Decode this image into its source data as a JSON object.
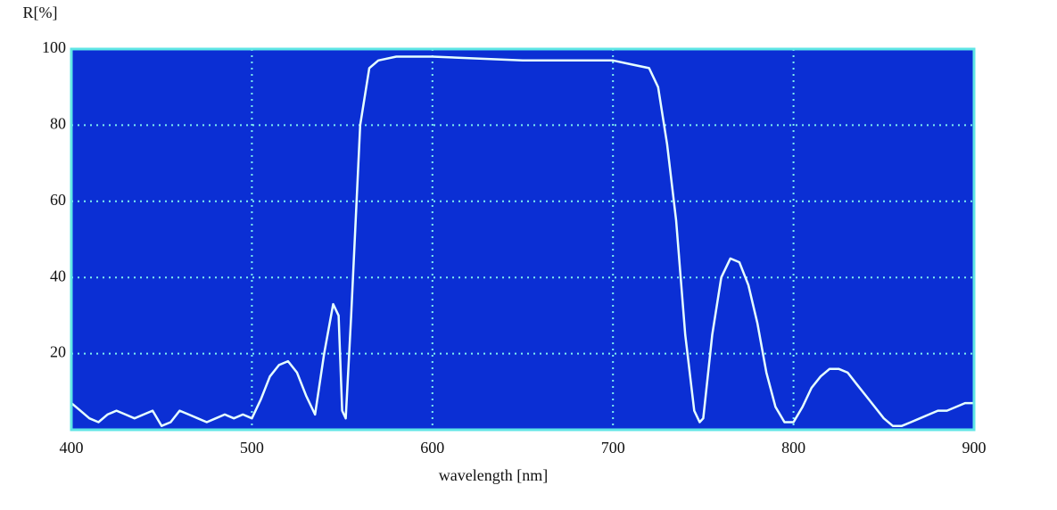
{
  "chart_data": {
    "type": "line",
    "y_label": "R[%]",
    "x_label": "wavelength [nm]",
    "x": [
      400,
      405,
      410,
      415,
      420,
      425,
      430,
      435,
      440,
      445,
      450,
      455,
      460,
      465,
      470,
      475,
      480,
      485,
      490,
      495,
      500,
      505,
      510,
      515,
      520,
      525,
      530,
      535,
      540,
      545,
      548,
      550,
      552,
      555,
      560,
      565,
      570,
      580,
      600,
      650,
      700,
      710,
      720,
      725,
      730,
      735,
      740,
      745,
      748,
      750,
      755,
      760,
      765,
      770,
      775,
      780,
      785,
      790,
      795,
      800,
      805,
      810,
      815,
      820,
      825,
      830,
      835,
      840,
      845,
      850,
      855,
      860,
      865,
      870,
      875,
      880,
      885,
      890,
      895,
      900
    ],
    "series": [
      {
        "name": "R",
        "color": "#e6ffff",
        "values": [
          7,
          5,
          3,
          2,
          4,
          5,
          4,
          3,
          4,
          5,
          1,
          2,
          5,
          4,
          3,
          2,
          3,
          4,
          3,
          4,
          3,
          8,
          14,
          17,
          18,
          15,
          9,
          4,
          20,
          33,
          30,
          5,
          3,
          30,
          80,
          95,
          97,
          98,
          98,
          97,
          97,
          96,
          95,
          90,
          75,
          55,
          25,
          5,
          2,
          3,
          25,
          40,
          45,
          44,
          38,
          28,
          15,
          6,
          2,
          2,
          6,
          11,
          14,
          16,
          16,
          15,
          12,
          9,
          6,
          3,
          1,
          1,
          2,
          3,
          4,
          5,
          5,
          6,
          7,
          7
        ]
      }
    ],
    "xlim": [
      400,
      900
    ],
    "ylim": [
      0,
      100
    ],
    "xticks": [
      400,
      500,
      600,
      700,
      800,
      900
    ],
    "yticks": [
      20,
      40,
      60,
      80,
      100
    ],
    "grid": true,
    "background": "#0b2fd4",
    "grid_color": "#7ff0f0",
    "frame_color": "#5fe6e6"
  }
}
